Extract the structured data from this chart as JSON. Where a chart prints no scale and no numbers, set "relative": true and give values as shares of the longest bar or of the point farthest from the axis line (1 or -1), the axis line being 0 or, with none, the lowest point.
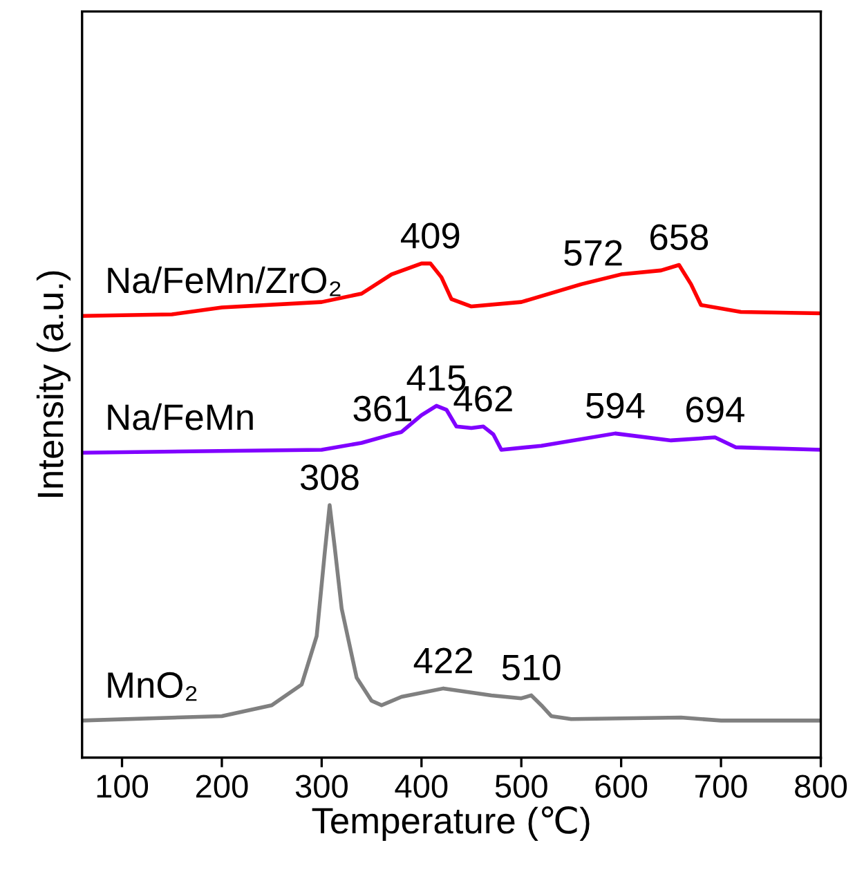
{
  "chart_data": {
    "type": "line",
    "relative": true,
    "xlabel": "Temperature (℃)",
    "ylabel": "Intensity (a.u.)",
    "xlim": [
      60,
      800
    ],
    "xticks": [
      100,
      200,
      300,
      400,
      500,
      600,
      700,
      800
    ],
    "tick_labels": "x",
    "grid": false,
    "legend": false,
    "marker": "none",
    "line_style": "solid",
    "series": [
      {
        "name": "MnO₂",
        "color": "#808080",
        "x": [
          60,
          200,
          250,
          280,
          295,
          303,
          308,
          313,
          320,
          335,
          350,
          360,
          380,
          422,
          470,
          500,
          510,
          520,
          530,
          550,
          660,
          700,
          800
        ],
        "values": [
          0.075,
          0.084,
          0.106,
          0.148,
          0.246,
          0.413,
          0.511,
          0.427,
          0.302,
          0.162,
          0.115,
          0.106,
          0.123,
          0.14,
          0.126,
          0.12,
          0.126,
          0.106,
          0.084,
          0.078,
          0.081,
          0.075,
          0.075
        ]
      },
      {
        "name": "Na/FeMn",
        "color": "#8000ff",
        "x": [
          60,
          300,
          340,
          370,
          380,
          400,
          415,
          425,
          435,
          450,
          462,
          472,
          480,
          520,
          594,
          650,
          694,
          715,
          800
        ],
        "values": [
          0.617,
          0.623,
          0.637,
          0.654,
          0.659,
          0.693,
          0.712,
          0.704,
          0.67,
          0.667,
          0.67,
          0.654,
          0.623,
          0.631,
          0.656,
          0.642,
          0.648,
          0.628,
          0.623
        ]
      },
      {
        "name": "Na/FeMn/ZrO₂",
        "color": "#ff0000",
        "x": [
          60,
          150,
          200,
          300,
          340,
          370,
          400,
          409,
          420,
          430,
          450,
          500,
          560,
          600,
          640,
          658,
          670,
          680,
          720,
          800
        ],
        "values": [
          0.894,
          0.897,
          0.911,
          0.922,
          0.939,
          0.978,
          1.0,
          1.0,
          0.972,
          0.928,
          0.913,
          0.922,
          0.958,
          0.978,
          0.986,
          0.997,
          0.958,
          0.916,
          0.902,
          0.899
        ]
      }
    ],
    "annotations": [
      {
        "text": "308",
        "x": 308,
        "y": 0.511
      },
      {
        "text": "422",
        "x": 422,
        "y": 0.14
      },
      {
        "text": "510",
        "x": 510,
        "y": 0.126
      },
      {
        "text": "361",
        "x": 361,
        "y": 0.65
      },
      {
        "text": "415",
        "x": 415,
        "y": 0.712
      },
      {
        "text": "462",
        "x": 462,
        "y": 0.67
      },
      {
        "text": "594",
        "x": 594,
        "y": 0.656
      },
      {
        "text": "694",
        "x": 694,
        "y": 0.648
      },
      {
        "text": "409",
        "x": 409,
        "y": 1.0
      },
      {
        "text": "572",
        "x": 572,
        "y": 0.965
      },
      {
        "text": "658",
        "x": 658,
        "y": 0.997
      }
    ]
  }
}
